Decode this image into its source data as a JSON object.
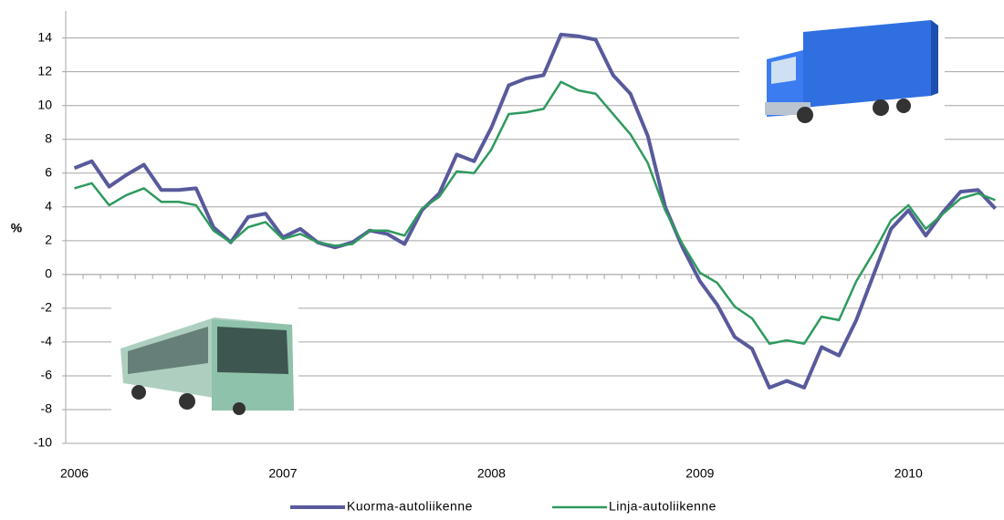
{
  "chart_data": {
    "type": "line",
    "y_label": "%",
    "categories": [
      "2006",
      null,
      null,
      null,
      null,
      null,
      null,
      null,
      null,
      null,
      null,
      null,
      "2007",
      null,
      null,
      null,
      null,
      null,
      null,
      null,
      null,
      null,
      null,
      null,
      "2008",
      null,
      null,
      null,
      null,
      null,
      null,
      null,
      null,
      null,
      null,
      null,
      "2009",
      null,
      null,
      null,
      null,
      null,
      null,
      null,
      null,
      null,
      null,
      null,
      "2010",
      null,
      null,
      null,
      null,
      null
    ],
    "series": [
      {
        "name": "Kuorma-autoliikenne",
        "color": "#585a9c",
        "values": [
          6.3,
          6.7,
          5.2,
          5.9,
          6.5,
          5.0,
          5.0,
          5.1,
          2.8,
          1.9,
          3.4,
          3.6,
          2.2,
          2.7,
          1.9,
          1.6,
          1.9,
          2.6,
          2.4,
          1.8,
          3.8,
          4.8,
          7.1,
          6.7,
          8.7,
          11.2,
          11.6,
          11.8,
          14.2,
          14.1,
          13.9,
          11.8,
          10.7,
          8.2,
          4.0,
          1.6,
          -0.4,
          -1.8,
          -3.7,
          -4.4,
          -6.7,
          -6.3,
          -6.7,
          -4.3,
          -4.8,
          -2.7,
          0.0,
          2.7,
          3.8,
          2.3,
          3.7,
          4.9,
          5.0,
          3.9
        ]
      },
      {
        "name": "Linja-autoliikenne",
        "color": "#2e9a5e",
        "values": [
          5.1,
          5.4,
          4.1,
          4.7,
          5.1,
          4.3,
          4.3,
          4.1,
          2.6,
          1.9,
          2.8,
          3.1,
          2.1,
          2.4,
          1.9,
          1.7,
          1.8,
          2.6,
          2.6,
          2.3,
          3.9,
          4.6,
          6.1,
          6.0,
          7.4,
          9.5,
          9.6,
          9.8,
          11.4,
          10.9,
          10.7,
          9.5,
          8.3,
          6.6,
          3.8,
          1.8,
          0.1,
          -0.5,
          -1.9,
          -2.6,
          -4.1,
          -3.9,
          -4.1,
          -2.5,
          -2.7,
          -0.4,
          1.3,
          3.2,
          4.1,
          2.7,
          3.6,
          4.5,
          4.8,
          4.4
        ]
      }
    ],
    "ylim": [
      -10,
      15.6
    ],
    "yticks": [
      -10,
      -8,
      -6,
      -4,
      -2,
      0,
      2,
      4,
      6,
      8,
      10,
      12,
      14
    ],
    "grid": true,
    "legend": "bottom"
  }
}
